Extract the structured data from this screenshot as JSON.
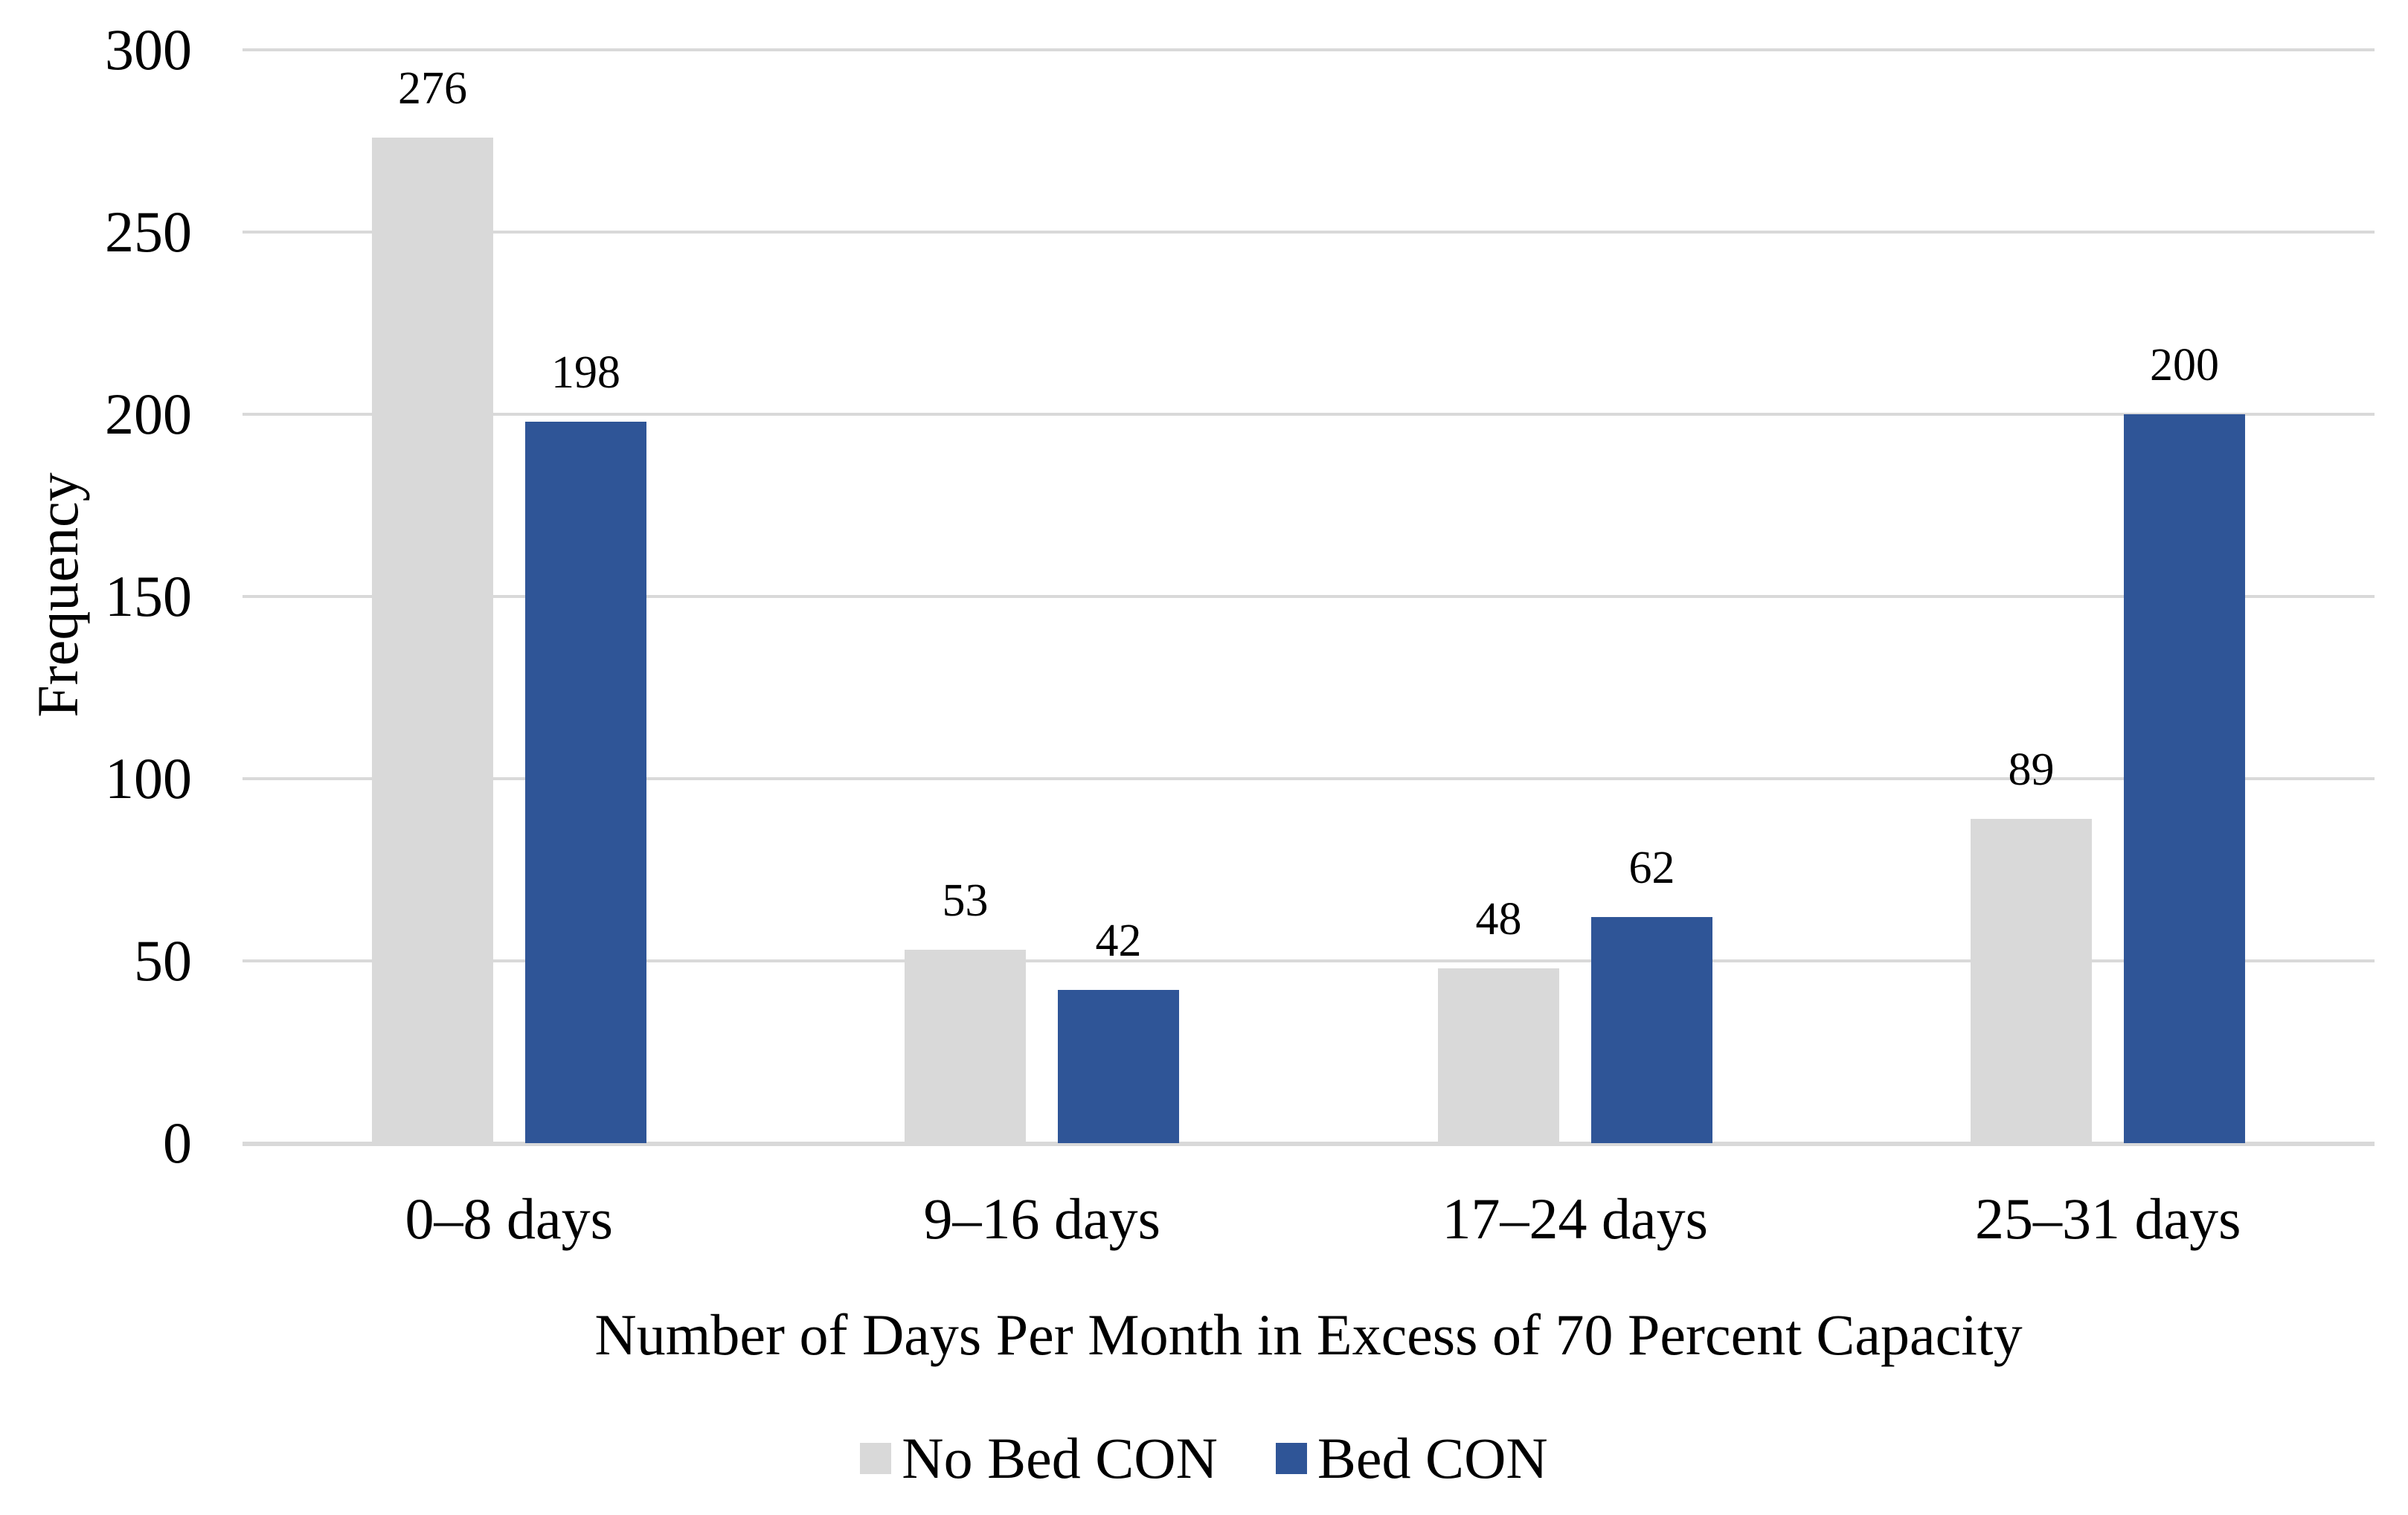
{
  "figure": {
    "background_color": "#FFFFFF",
    "text_color": "#000000",
    "gridline_color": "#D9D9D9",
    "axis_line_color": "#D9D9D9"
  },
  "chart_data": {
    "type": "bar",
    "title": "",
    "categories": [
      "0–8 days",
      "9–16 days",
      "17–24 days",
      "25–31 days"
    ],
    "series": [
      {
        "name": "No Bed CON",
        "color": "#D9D9D9",
        "values": [
          276,
          53,
          48,
          89
        ]
      },
      {
        "name": "Bed CON",
        "color": "#2F5597",
        "values": [
          198,
          42,
          62,
          200
        ]
      }
    ],
    "data_labels": {
      "No Bed CON": [
        "276",
        "53",
        "48",
        "89"
      ],
      "Bed CON": [
        "198",
        "42",
        "62",
        "200"
      ]
    },
    "xlabel": "Number of Days Per Month in Excess of 70 Percent Capacity",
    "ylabel": "Frequency",
    "ylim": [
      0,
      300
    ],
    "yticks": [
      0,
      50,
      100,
      150,
      200,
      250,
      300
    ],
    "grid": "horizontal-only",
    "legend_position": "bottom-center"
  }
}
